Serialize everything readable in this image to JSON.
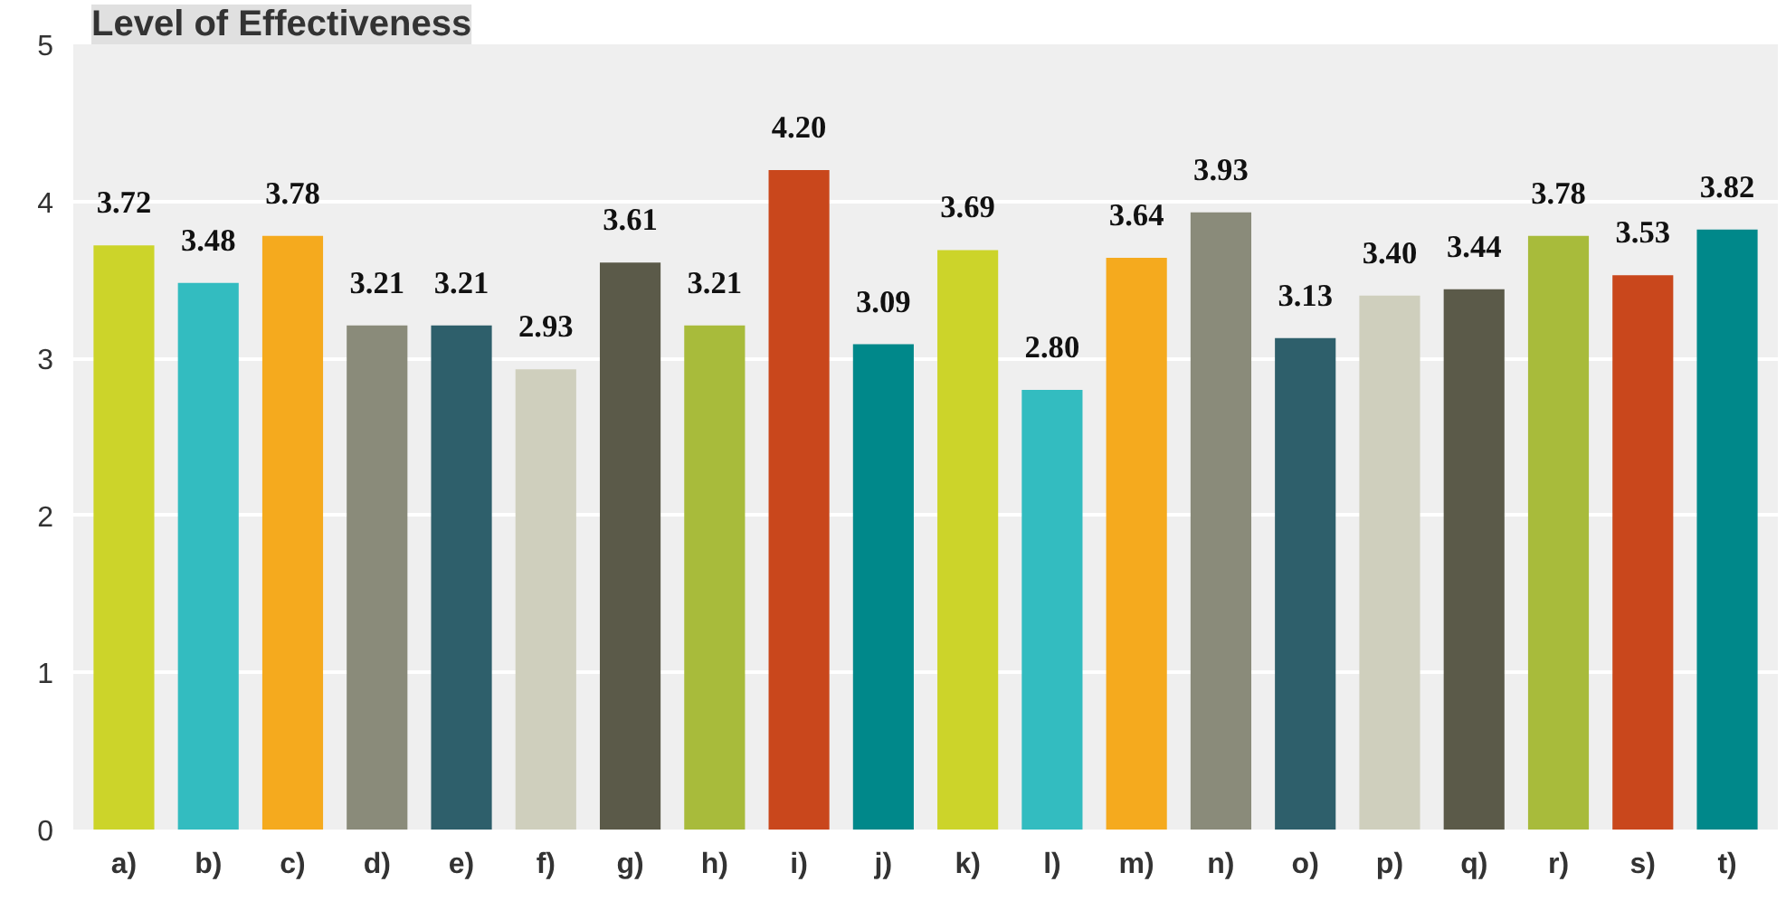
{
  "chart_data": {
    "type": "bar",
    "title": "Level of Effectiveness",
    "categories": [
      "a)",
      "b)",
      "c)",
      "d)",
      "e)",
      "f)",
      "g)",
      "h)",
      "i)",
      "j)",
      "k)",
      "l)",
      "m)",
      "n)",
      "o)",
      "p)",
      "q)",
      "r)",
      "s)",
      "t)"
    ],
    "values": [
      3.72,
      3.48,
      3.78,
      3.21,
      3.21,
      2.93,
      3.61,
      3.21,
      4.2,
      3.09,
      3.69,
      2.8,
      3.64,
      3.93,
      3.13,
      3.4,
      3.44,
      3.78,
      3.53,
      3.82
    ],
    "value_labels": [
      "3.72",
      "3.48",
      "3.78",
      "3.21",
      "3.21",
      "2.93",
      "3.61",
      "3.21",
      "4.20",
      "3.09",
      "3.69",
      "2.80",
      "3.64",
      "3.93",
      "3.13",
      "3.40",
      "3.44",
      "3.78",
      "3.53",
      "3.82"
    ],
    "colors": [
      "#ccd42a",
      "#33bcc0",
      "#f5aa1e",
      "#8a8b7a",
      "#2e5f6b",
      "#cfcfbd",
      "#5b5a49",
      "#a8bb3b",
      "#c9471c",
      "#00888a",
      "#ccd42a",
      "#33bcc0",
      "#f5aa1e",
      "#8a8b7a",
      "#2e5f6b",
      "#cfcfbd",
      "#5b5a49",
      "#a8bb3b",
      "#c9471c",
      "#00888a"
    ],
    "ylim": [
      0,
      5
    ],
    "yticks": [
      0,
      1,
      2,
      3,
      4,
      5
    ],
    "grid": "y"
  }
}
